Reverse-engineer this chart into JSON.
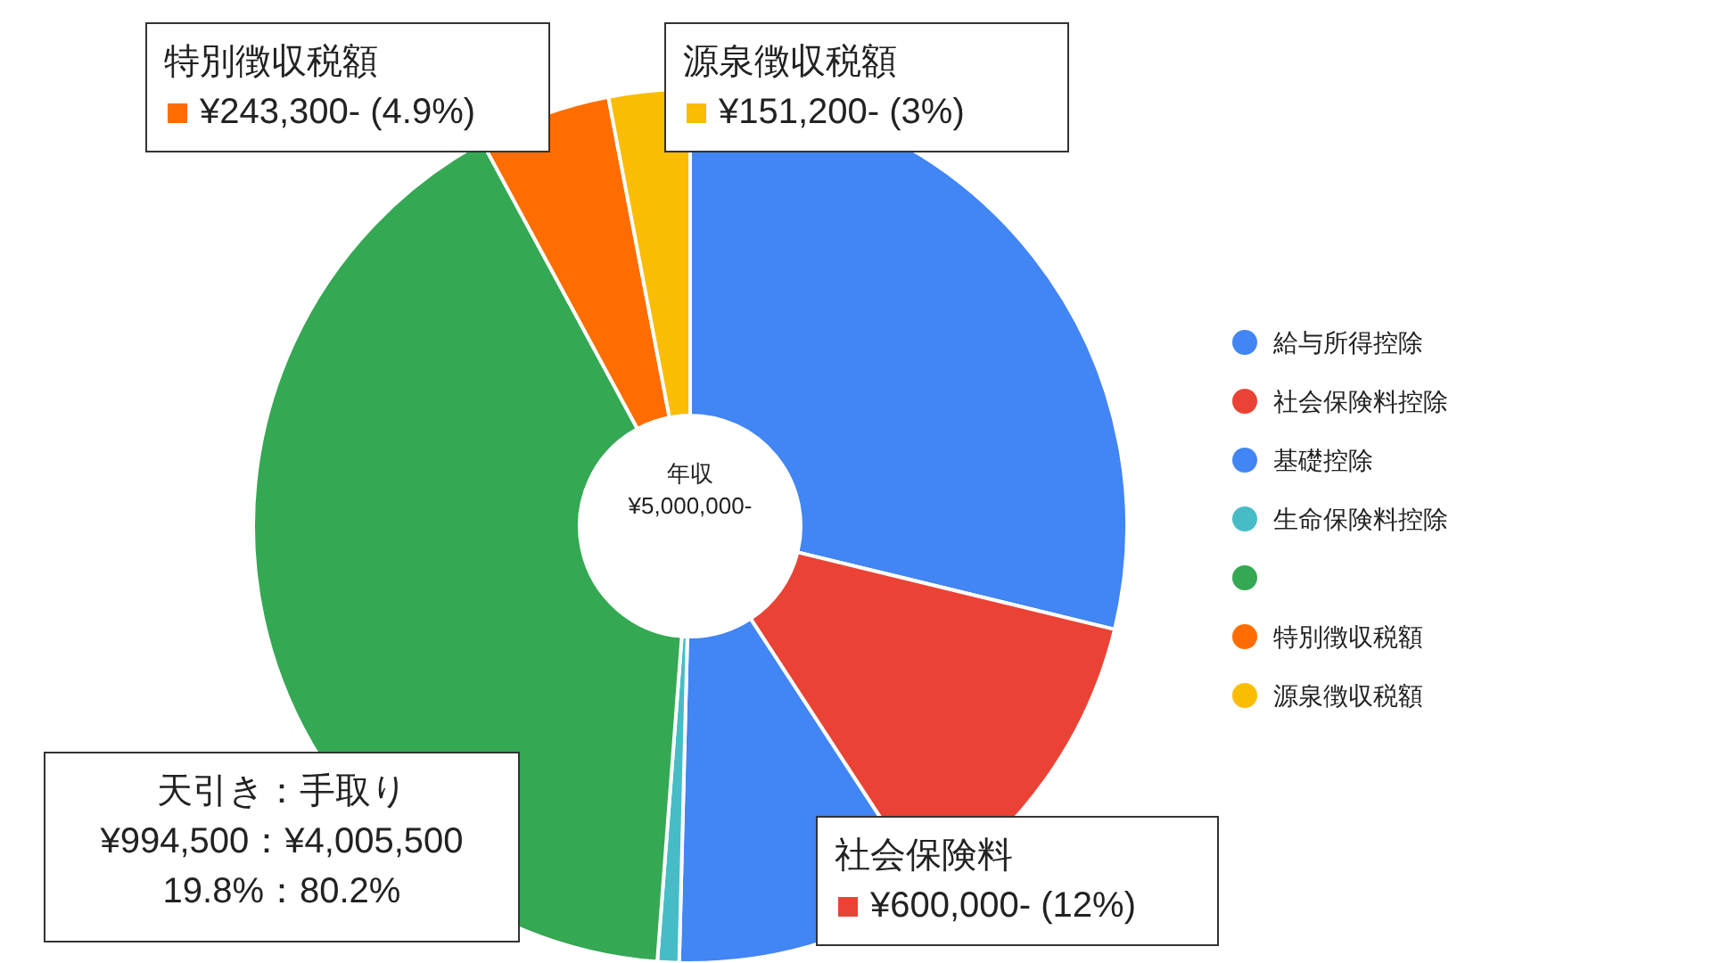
{
  "chart_data": {
    "type": "donut",
    "categories": [
      "給与所得控除",
      "社会保険料控除",
      "基礎控除",
      "生命保険料控除",
      null,
      "特別徴収税額",
      "源泉徴収税額"
    ],
    "values": [
      28.8,
      12,
      9.6,
      0.8,
      40.9,
      4.9,
      3
    ],
    "colors": [
      "#4285f4",
      "#ea4335",
      "#4285f4",
      "#46bdc6",
      "#34a853",
      "#ff6d01",
      "#fbbc04"
    ],
    "legend": "right",
    "annotations": [
      "年収\n¥5,000,000-",
      "特別徴収税額\n¥243,300- (4.9%)",
      "源泉徴収税額\n¥151,200- (3%)",
      "天引き：手取り\n¥994,500：¥4,005,500\n19.8%：80.2%",
      "社会保険料\n¥600,000- (12%)"
    ]
  }
}
